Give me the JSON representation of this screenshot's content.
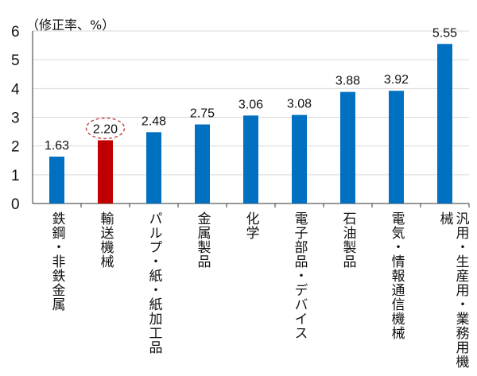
{
  "chart_data": {
    "type": "bar",
    "ylabel": "（修正率、%）",
    "ylim": [
      0,
      6
    ],
    "yticks": [
      0,
      1,
      2,
      3,
      4,
      5,
      6
    ],
    "grid": true,
    "categories": [
      "鉄鋼・非鉄金属",
      "輸送機械",
      "パルプ・紙・紙加工品",
      "金属製品",
      "化学",
      "電子部品・デバイス",
      "石油製品",
      "電気・情報通信機械",
      "汎用・生産用・業務用機械"
    ],
    "values": [
      1.63,
      2.2,
      2.48,
      2.75,
      3.06,
      3.08,
      3.88,
      3.92,
      5.55
    ],
    "data_labels": [
      "1.63",
      "2.20",
      "2.48",
      "2.75",
      "3.06",
      "3.08",
      "3.88",
      "3.92",
      "5.55"
    ],
    "highlight_index": 1,
    "annotation": "dashed circle around 2.20",
    "colors": {
      "bar": "#0070C0",
      "highlight": "#C00000",
      "circle": "#C0504D"
    }
  }
}
